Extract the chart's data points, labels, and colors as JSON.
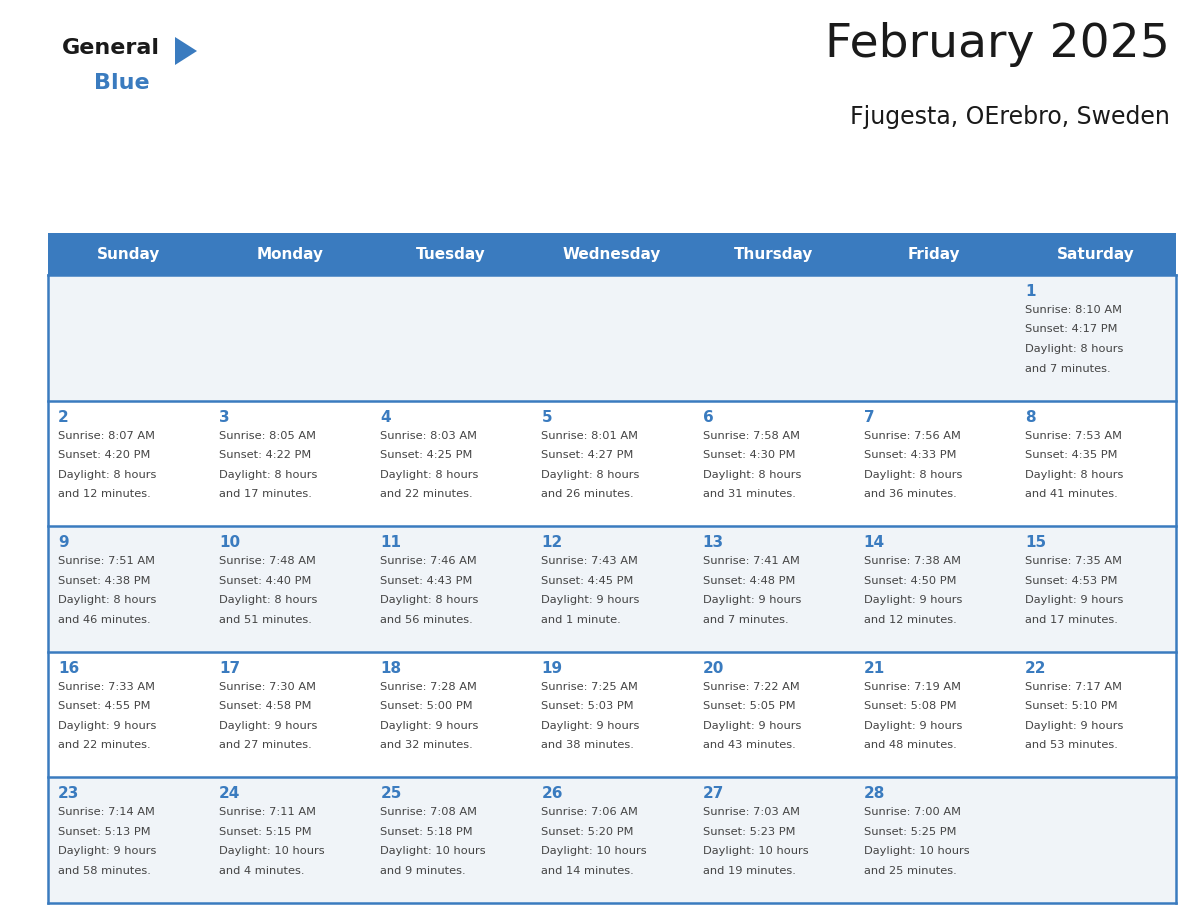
{
  "title": "February 2025",
  "subtitle": "Fjugesta, OErebro, Sweden",
  "header_bg": "#3a7bbf",
  "header_text_color": "#ffffff",
  "days_of_week": [
    "Sunday",
    "Monday",
    "Tuesday",
    "Wednesday",
    "Thursday",
    "Friday",
    "Saturday"
  ],
  "row_bg_odd": "#f0f4f8",
  "row_bg_even": "#ffffff",
  "grid_line_color": "#3a7bbf",
  "day_number_color": "#3a7bbf",
  "cell_text_color": "#444444",
  "calendar_data": [
    [
      null,
      null,
      null,
      null,
      null,
      null,
      {
        "day": 1,
        "sunrise": "8:10 AM",
        "sunset": "4:17 PM",
        "daylight": "8 hours and 7 minutes"
      }
    ],
    [
      {
        "day": 2,
        "sunrise": "8:07 AM",
        "sunset": "4:20 PM",
        "daylight": "8 hours and 12 minutes"
      },
      {
        "day": 3,
        "sunrise": "8:05 AM",
        "sunset": "4:22 PM",
        "daylight": "8 hours and 17 minutes"
      },
      {
        "day": 4,
        "sunrise": "8:03 AM",
        "sunset": "4:25 PM",
        "daylight": "8 hours and 22 minutes"
      },
      {
        "day": 5,
        "sunrise": "8:01 AM",
        "sunset": "4:27 PM",
        "daylight": "8 hours and 26 minutes"
      },
      {
        "day": 6,
        "sunrise": "7:58 AM",
        "sunset": "4:30 PM",
        "daylight": "8 hours and 31 minutes"
      },
      {
        "day": 7,
        "sunrise": "7:56 AM",
        "sunset": "4:33 PM",
        "daylight": "8 hours and 36 minutes"
      },
      {
        "day": 8,
        "sunrise": "7:53 AM",
        "sunset": "4:35 PM",
        "daylight": "8 hours and 41 minutes"
      }
    ],
    [
      {
        "day": 9,
        "sunrise": "7:51 AM",
        "sunset": "4:38 PM",
        "daylight": "8 hours and 46 minutes"
      },
      {
        "day": 10,
        "sunrise": "7:48 AM",
        "sunset": "4:40 PM",
        "daylight": "8 hours and 51 minutes"
      },
      {
        "day": 11,
        "sunrise": "7:46 AM",
        "sunset": "4:43 PM",
        "daylight": "8 hours and 56 minutes"
      },
      {
        "day": 12,
        "sunrise": "7:43 AM",
        "sunset": "4:45 PM",
        "daylight": "9 hours and 1 minute"
      },
      {
        "day": 13,
        "sunrise": "7:41 AM",
        "sunset": "4:48 PM",
        "daylight": "9 hours and 7 minutes"
      },
      {
        "day": 14,
        "sunrise": "7:38 AM",
        "sunset": "4:50 PM",
        "daylight": "9 hours and 12 minutes"
      },
      {
        "day": 15,
        "sunrise": "7:35 AM",
        "sunset": "4:53 PM",
        "daylight": "9 hours and 17 minutes"
      }
    ],
    [
      {
        "day": 16,
        "sunrise": "7:33 AM",
        "sunset": "4:55 PM",
        "daylight": "9 hours and 22 minutes"
      },
      {
        "day": 17,
        "sunrise": "7:30 AM",
        "sunset": "4:58 PM",
        "daylight": "9 hours and 27 minutes"
      },
      {
        "day": 18,
        "sunrise": "7:28 AM",
        "sunset": "5:00 PM",
        "daylight": "9 hours and 32 minutes"
      },
      {
        "day": 19,
        "sunrise": "7:25 AM",
        "sunset": "5:03 PM",
        "daylight": "9 hours and 38 minutes"
      },
      {
        "day": 20,
        "sunrise": "7:22 AM",
        "sunset": "5:05 PM",
        "daylight": "9 hours and 43 minutes"
      },
      {
        "day": 21,
        "sunrise": "7:19 AM",
        "sunset": "5:08 PM",
        "daylight": "9 hours and 48 minutes"
      },
      {
        "day": 22,
        "sunrise": "7:17 AM",
        "sunset": "5:10 PM",
        "daylight": "9 hours and 53 minutes"
      }
    ],
    [
      {
        "day": 23,
        "sunrise": "7:14 AM",
        "sunset": "5:13 PM",
        "daylight": "9 hours and 58 minutes"
      },
      {
        "day": 24,
        "sunrise": "7:11 AM",
        "sunset": "5:15 PM",
        "daylight": "10 hours and 4 minutes"
      },
      {
        "day": 25,
        "sunrise": "7:08 AM",
        "sunset": "5:18 PM",
        "daylight": "10 hours and 9 minutes"
      },
      {
        "day": 26,
        "sunrise": "7:06 AM",
        "sunset": "5:20 PM",
        "daylight": "10 hours and 14 minutes"
      },
      {
        "day": 27,
        "sunrise": "7:03 AM",
        "sunset": "5:23 PM",
        "daylight": "10 hours and 19 minutes"
      },
      {
        "day": 28,
        "sunrise": "7:00 AM",
        "sunset": "5:25 PM",
        "daylight": "10 hours and 25 minutes"
      },
      null
    ]
  ],
  "figsize": [
    11.88,
    9.18
  ],
  "dpi": 100
}
